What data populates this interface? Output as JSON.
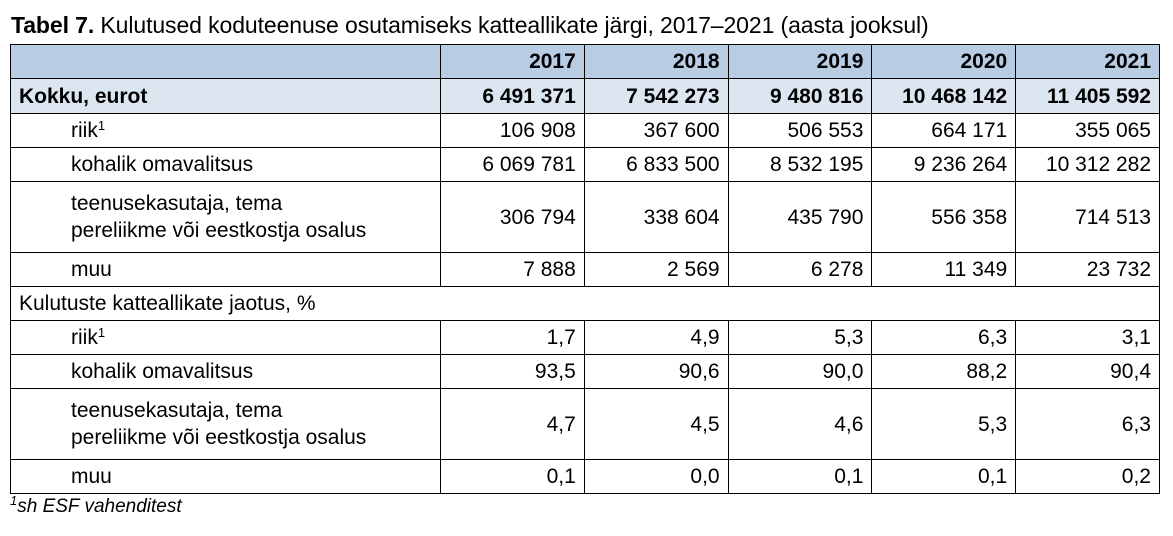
{
  "title": {
    "prefix": "Tabel 7.",
    "text": " Kulutused koduteenuse osutamiseks katteallikate järgi, 2017–2021 (aasta jooksul)"
  },
  "colors": {
    "header_bg": "#b8cce4",
    "total_bg": "#dce6f1"
  },
  "table": {
    "years": [
      "2017",
      "2018",
      "2019",
      "2020",
      "2021"
    ],
    "total": {
      "label": "Kokku, eurot",
      "values": [
        "6 491 371",
        "7 542 273",
        "9 480 816",
        "10 468 142",
        "11 405 592"
      ]
    },
    "euro_rows": [
      {
        "label": "riik",
        "sup": "1",
        "values": [
          "106 908",
          "367 600",
          "506 553",
          "664 171",
          "355 065"
        ]
      },
      {
        "label": "kohalik omavalitsus",
        "values": [
          "6 069 781",
          "6 833 500",
          "8 532 195",
          "9 236 264",
          "10 312 282"
        ]
      },
      {
        "label": "teenusekasutaja, tema",
        "label2": "pereliikme või eestkostja osalus",
        "values": [
          "306 794",
          "338 604",
          "435 790",
          "556 358",
          "714 513"
        ]
      },
      {
        "label": "muu",
        "values": [
          "7 888",
          "2 569",
          "6 278",
          "11 349",
          "23 732"
        ]
      }
    ],
    "section_label": "Kulutuste katteallikate jaotus, %",
    "pct_rows": [
      {
        "label": "riik",
        "sup": "1",
        "values": [
          "1,7",
          "4,9",
          "5,3",
          "6,3",
          "3,1"
        ]
      },
      {
        "label": "kohalik omavalitsus",
        "values": [
          "93,5",
          "90,6",
          "90,0",
          "88,2",
          "90,4"
        ]
      },
      {
        "label": "teenusekasutaja, tema",
        "label2": "pereliikme või eestkostja osalus",
        "values": [
          "4,7",
          "4,5",
          "4,6",
          "5,3",
          "6,3"
        ]
      },
      {
        "label": "muu",
        "values": [
          "0,1",
          "0,0",
          "0,1",
          "0,1",
          "0,2"
        ]
      }
    ]
  },
  "footnote": {
    "sup": "1",
    "text": "sh ESF vahenditest"
  }
}
